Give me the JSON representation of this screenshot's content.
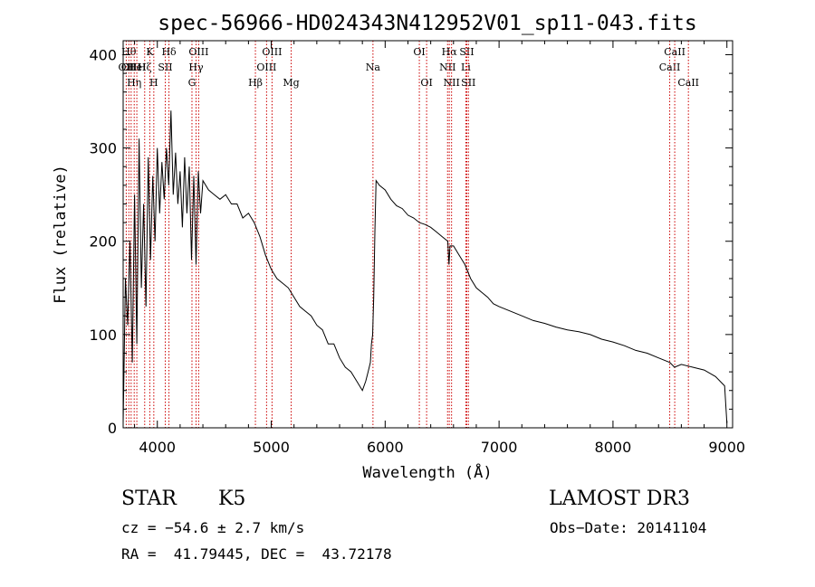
{
  "chart_data": {
    "type": "line",
    "title": "spec-56966-HD024343N412952V01_sp11-043.fits",
    "xlabel": "Wavelength (Å)",
    "ylabel": "Flux (relative)",
    "xlim": [
      3700,
      9050
    ],
    "ylim": [
      0,
      415
    ],
    "xticks": [
      4000,
      5000,
      6000,
      7000,
      8000,
      9000
    ],
    "yticks": [
      0,
      100,
      200,
      300,
      400
    ],
    "grid": false,
    "line_color": "#000000",
    "marker_color": "#cc0000",
    "series": [
      {
        "x": [
          3700,
          3720,
          3740,
          3760,
          3780,
          3800,
          3820,
          3840,
          3860,
          3880,
          3900,
          3920,
          3940,
          3960,
          3980,
          4000,
          4020,
          4040,
          4060,
          4080,
          4100,
          4120,
          4140,
          4160,
          4180,
          4200,
          4220,
          4240,
          4260,
          4280,
          4300,
          4320,
          4340,
          4360,
          4380,
          4400,
          4450,
          4500,
          4550,
          4600,
          4650,
          4700,
          4750,
          4800,
          4850,
          4900,
          4950,
          5000,
          5050,
          5100,
          5150,
          5200,
          5250,
          5300,
          5350,
          5400,
          5450,
          5500,
          5550,
          5600,
          5650,
          5700,
          5750,
          5800,
          5830,
          5850,
          5870,
          5880,
          5890,
          5900,
          5910,
          5920,
          5950,
          6000,
          6050,
          6100,
          6150,
          6200,
          6250,
          6300,
          6350,
          6400,
          6450,
          6500,
          6550,
          6560,
          6570,
          6600,
          6650,
          6700,
          6750,
          6800,
          6850,
          6900,
          6950,
          7000,
          7100,
          7200,
          7300,
          7400,
          7500,
          7600,
          7700,
          7800,
          7900,
          8000,
          8100,
          8200,
          8300,
          8400,
          8500,
          8540,
          8600,
          8700,
          8800,
          8900,
          8980,
          9000
        ],
        "y": [
          5,
          160,
          110,
          200,
          70,
          250,
          90,
          310,
          150,
          240,
          130,
          290,
          180,
          270,
          200,
          300,
          230,
          285,
          245,
          300,
          260,
          340,
          250,
          295,
          240,
          275,
          215,
          290,
          230,
          280,
          180,
          270,
          175,
          275,
          230,
          265,
          255,
          250,
          245,
          250,
          240,
          240,
          225,
          230,
          220,
          205,
          185,
          170,
          160,
          155,
          150,
          140,
          130,
          125,
          120,
          110,
          105,
          90,
          90,
          75,
          65,
          60,
          50,
          40,
          50,
          60,
          70,
          90,
          100,
          140,
          210,
          265,
          260,
          255,
          245,
          238,
          235,
          228,
          225,
          220,
          218,
          215,
          210,
          205,
          200,
          175,
          195,
          195,
          185,
          175,
          160,
          150,
          145,
          140,
          133,
          130,
          125,
          120,
          115,
          112,
          108,
          105,
          103,
          100,
          95,
          92,
          88,
          83,
          80,
          75,
          70,
          65,
          68,
          65,
          62,
          55,
          45,
          5
        ]
      }
    ],
    "lines": [
      {
        "x": 3727,
        "labels": [
          "OII"
        ],
        "row": 1
      },
      {
        "x": 3750,
        "labels": [
          "Hθ"
        ],
        "row": 0
      },
      {
        "x": 3770,
        "labels": [
          "OIII"
        ],
        "row": 1
      },
      {
        "x": 3797,
        "labels": [
          "Hη"
        ],
        "row": 2
      },
      {
        "x": 3820,
        "labels": [
          "HeI"
        ],
        "row": 1
      },
      {
        "x": 3889,
        "labels": [
          "Hζ"
        ],
        "row": 1
      },
      {
        "x": 3934,
        "labels": [
          "K"
        ],
        "row": 0
      },
      {
        "x": 3969,
        "labels": [
          "H"
        ],
        "row": 2
      },
      {
        "x": 4070,
        "labels": [
          "SII"
        ],
        "row": 1
      },
      {
        "x": 4102,
        "labels": [
          "Hδ"
        ],
        "row": 0
      },
      {
        "x": 4304,
        "labels": [
          "G"
        ],
        "row": 2
      },
      {
        "x": 4340,
        "labels": [
          "Hγ"
        ],
        "row": 1
      },
      {
        "x": 4363,
        "labels": [
          "OIII"
        ],
        "row": 0
      },
      {
        "x": 4861,
        "labels": [
          "Hβ"
        ],
        "row": 2
      },
      {
        "x": 4959,
        "labels": [
          "OIII"
        ],
        "row": 1
      },
      {
        "x": 5007,
        "labels": [
          "OIII"
        ],
        "row": 0
      },
      {
        "x": 5175,
        "labels": [
          "Mg"
        ],
        "row": 2
      },
      {
        "x": 5893,
        "labels": [
          "Na"
        ],
        "row": 1
      },
      {
        "x": 6300,
        "labels": [
          "OI"
        ],
        "row": 0
      },
      {
        "x": 6364,
        "labels": [
          "OI"
        ],
        "row": 2
      },
      {
        "x": 6548,
        "labels": [
          "NII"
        ],
        "row": 1
      },
      {
        "x": 6563,
        "labels": [
          "Hα"
        ],
        "row": 0
      },
      {
        "x": 6583,
        "labels": [
          "NII"
        ],
        "row": 2
      },
      {
        "x": 6708,
        "labels": [
          "Li"
        ],
        "row": 1
      },
      {
        "x": 6717,
        "labels": [
          "SII"
        ],
        "row": 0
      },
      {
        "x": 6731,
        "labels": [
          "SII"
        ],
        "row": 2
      },
      {
        "x": 8498,
        "labels": [
          "CaII"
        ],
        "row": 1
      },
      {
        "x": 8542,
        "labels": [
          "CaII"
        ],
        "row": 0
      },
      {
        "x": 8662,
        "labels": [
          "CaII"
        ],
        "row": 2
      }
    ]
  },
  "info": {
    "object_class": "STAR",
    "subclass": "K5",
    "survey": "LAMOST DR3",
    "cz": "cz = −54.6 ± 2.7 km/s",
    "obs_date": "Obs−Date: 20141104",
    "coords": "RA =  41.79445, DEC =  43.72178"
  }
}
